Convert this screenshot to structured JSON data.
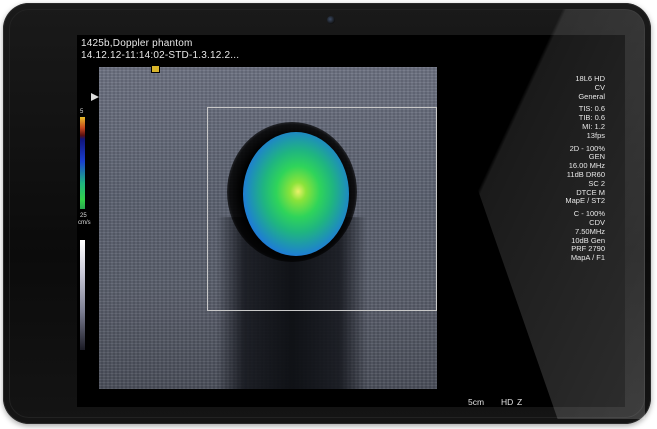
{
  "header": {
    "line1": "1425b,Doppler phantom",
    "line2": "14.12.12-11:14:02-STD-1.3.12.2..."
  },
  "left_scale": {
    "top_value": "5",
    "bottom_value": "25",
    "unit": "cm/s"
  },
  "params": {
    "group1": [
      "18L6 HD",
      "CV",
      "General"
    ],
    "group2": [
      "TIS: 0.6",
      "TIB: 0.6",
      "MI: 1.2",
      "13fps"
    ],
    "group3": [
      "2D - 100%",
      "GEN",
      "16.00 MHz",
      "11dB DR60",
      "SC 2",
      "DTCE M",
      "MapE / ST2"
    ],
    "group4": [
      "C - 100%",
      "CDV",
      "7.50MHz",
      "10dB Gen",
      "PRF 2790",
      "MapA / F1"
    ]
  },
  "footer": {
    "depth": "5cm",
    "mode": "HD",
    "zoom": "Z"
  },
  "colors": {
    "frame": "#0b0b0b",
    "text": "#e4e4e4",
    "box_outline": "#c8c8c8"
  }
}
